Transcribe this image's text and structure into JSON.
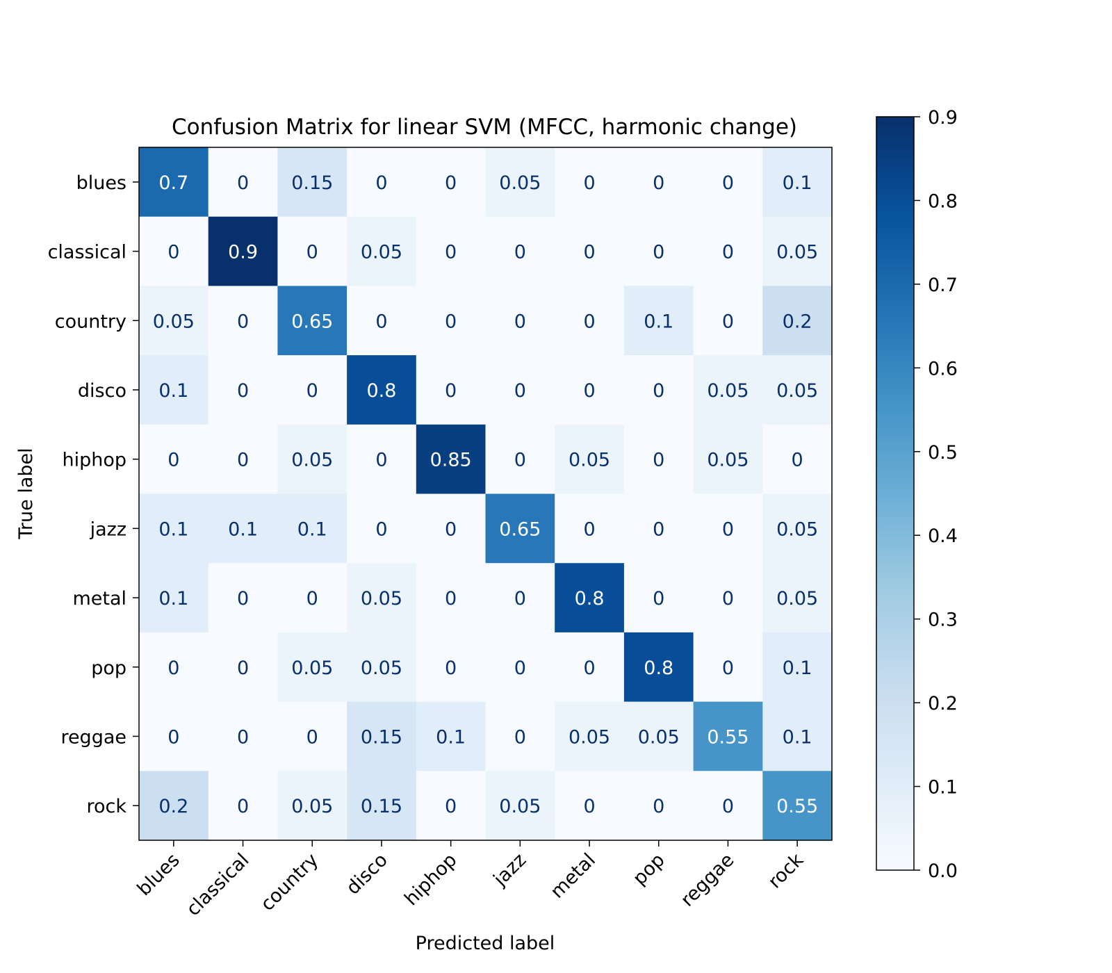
{
  "chart_data": {
    "type": "heatmap",
    "title": "Confusion Matrix for linear SVM (MFCC, harmonic change)",
    "xlabel": "Predicted label",
    "ylabel": "True label",
    "x_categories": [
      "blues",
      "classical",
      "country",
      "disco",
      "hiphop",
      "jazz",
      "metal",
      "pop",
      "reggae",
      "rock"
    ],
    "y_categories": [
      "blues",
      "classical",
      "country",
      "disco",
      "hiphop",
      "jazz",
      "metal",
      "pop",
      "reggae",
      "rock"
    ],
    "values": [
      [
        0.7,
        0,
        0.15,
        0,
        0,
        0.05,
        0,
        0,
        0,
        0.1
      ],
      [
        0,
        0.9,
        0,
        0.05,
        0,
        0,
        0,
        0,
        0,
        0.05
      ],
      [
        0.05,
        0,
        0.65,
        0,
        0,
        0,
        0,
        0.1,
        0,
        0.2
      ],
      [
        0.1,
        0,
        0,
        0.8,
        0,
        0,
        0,
        0,
        0.05,
        0.05
      ],
      [
        0,
        0,
        0.05,
        0,
        0.85,
        0,
        0.05,
        0,
        0.05,
        0
      ],
      [
        0.1,
        0.1,
        0.1,
        0,
        0,
        0.65,
        0,
        0,
        0,
        0.05
      ],
      [
        0.1,
        0,
        0,
        0.05,
        0,
        0,
        0.8,
        0,
        0,
        0.05
      ],
      [
        0,
        0,
        0.05,
        0.05,
        0,
        0,
        0,
        0.8,
        0,
        0.1
      ],
      [
        0,
        0,
        0,
        0.15,
        0.1,
        0,
        0.05,
        0.05,
        0.55,
        0.1
      ],
      [
        0.2,
        0,
        0.05,
        0.15,
        0,
        0.05,
        0,
        0,
        0,
        0.55
      ]
    ],
    "cell_labels": [
      [
        "0.7",
        "0",
        "0.15",
        "0",
        "0",
        "0.05",
        "0",
        "0",
        "0",
        "0.1"
      ],
      [
        "0",
        "0.9",
        "0",
        "0.05",
        "0",
        "0",
        "0",
        "0",
        "0",
        "0.05"
      ],
      [
        "0.05",
        "0",
        "0.65",
        "0",
        "0",
        "0",
        "0",
        "0.1",
        "0",
        "0.2"
      ],
      [
        "0.1",
        "0",
        "0",
        "0.8",
        "0",
        "0",
        "0",
        "0",
        "0.05",
        "0.05"
      ],
      [
        "0",
        "0",
        "0.05",
        "0",
        "0.85",
        "0",
        "0.05",
        "0",
        "0.05",
        "0"
      ],
      [
        "0.1",
        "0.1",
        "0.1",
        "0",
        "0",
        "0.65",
        "0",
        "0",
        "0",
        "0.05"
      ],
      [
        "0.1",
        "0",
        "0",
        "0.05",
        "0",
        "0",
        "0.8",
        "0",
        "0",
        "0.05"
      ],
      [
        "0",
        "0",
        "0.05",
        "0.05",
        "0",
        "0",
        "0",
        "0.8",
        "0",
        "0.1"
      ],
      [
        "0",
        "0",
        "0",
        "0.15",
        "0.1",
        "0",
        "0.05",
        "0.05",
        "0.55",
        "0.1"
      ],
      [
        "0.2",
        "0",
        "0.05",
        "0.15",
        "0",
        "0.05",
        "0",
        "0",
        "0",
        "0.55"
      ]
    ],
    "colorbar": {
      "range": [
        0.0,
        0.9
      ],
      "ticks": [
        0.0,
        0.1,
        0.2,
        0.3,
        0.4,
        0.5,
        0.6,
        0.7,
        0.8,
        0.9
      ],
      "tick_labels": [
        "0.0",
        "0.1",
        "0.2",
        "0.3",
        "0.4",
        "0.5",
        "0.6",
        "0.7",
        "0.8",
        "0.9"
      ]
    },
    "colormap": "Blues",
    "grid": false
  }
}
